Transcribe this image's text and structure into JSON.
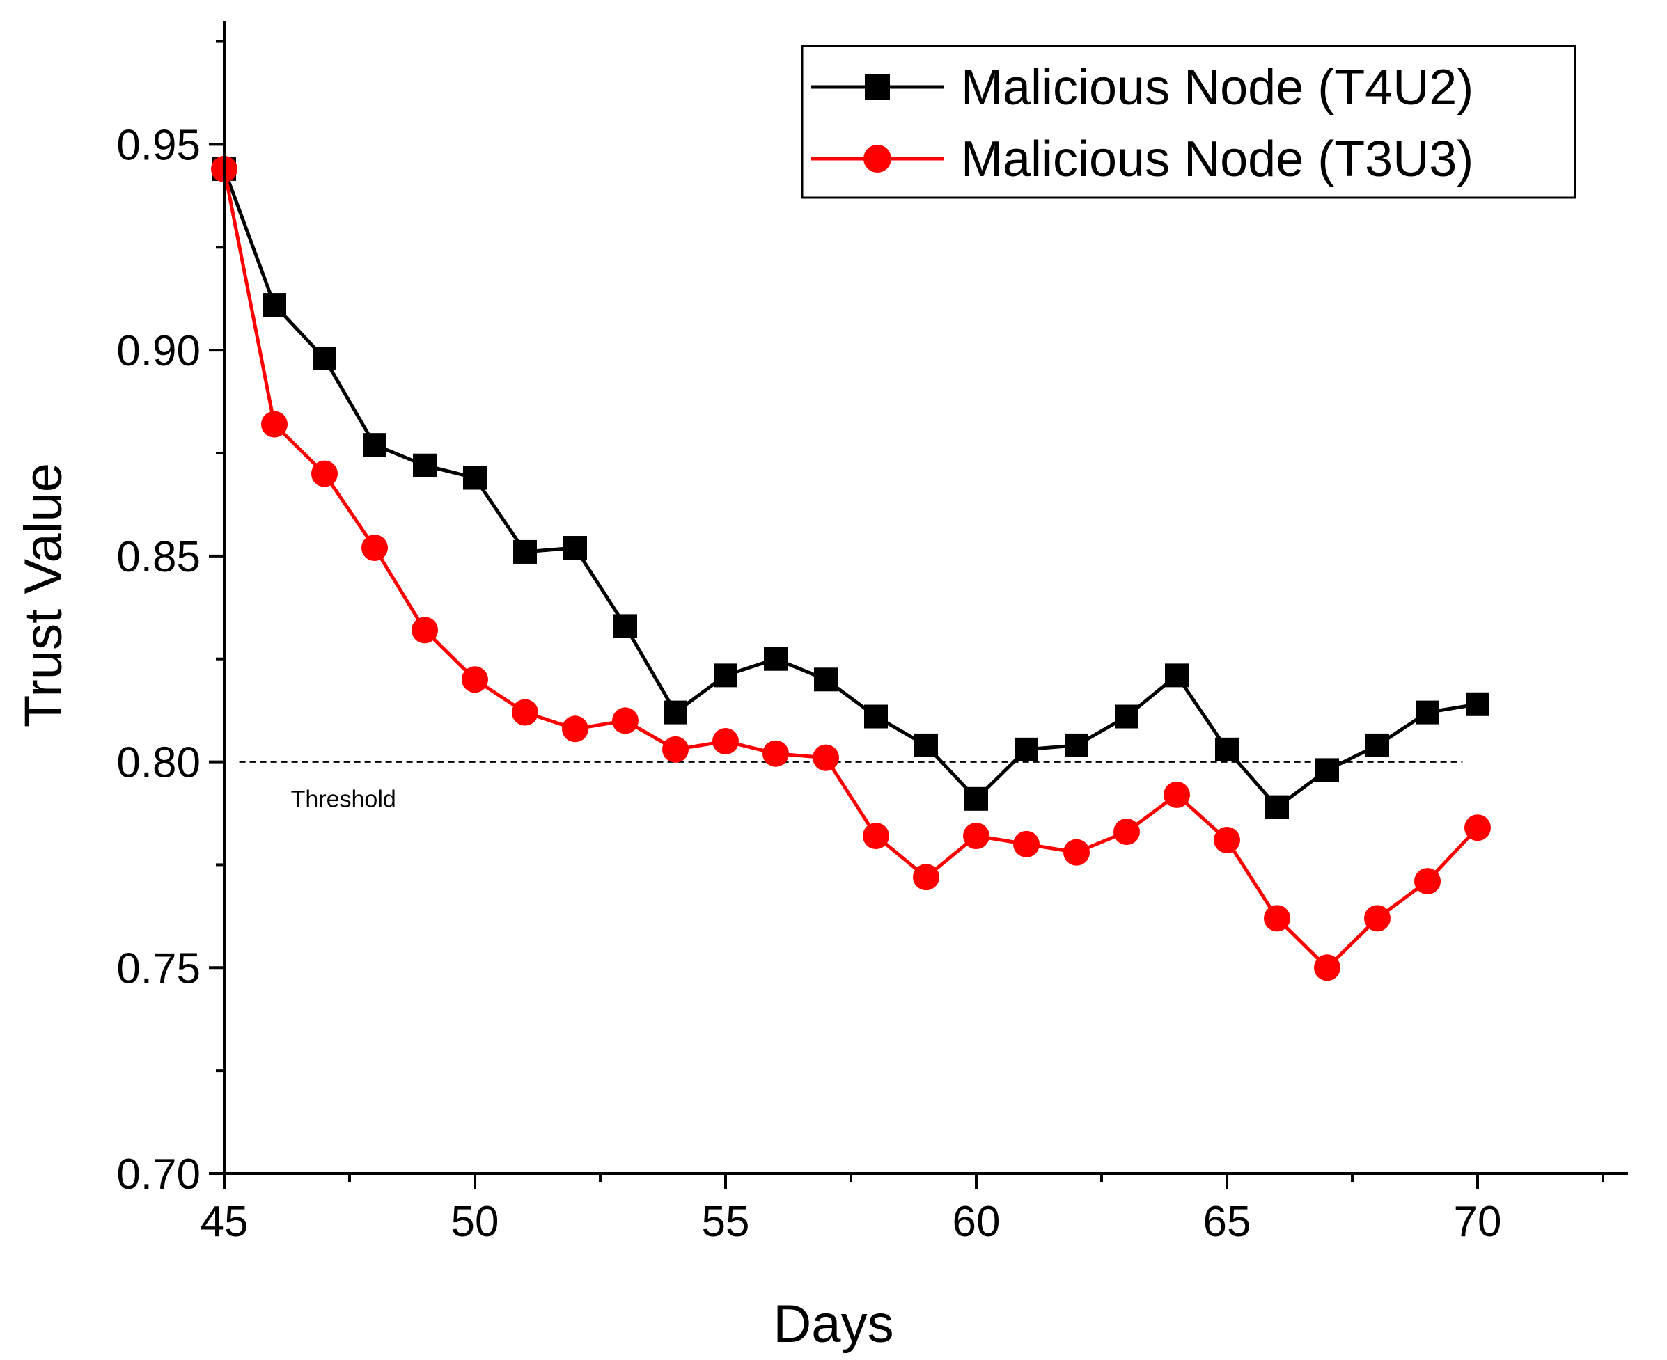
{
  "chart_data": {
    "type": "line",
    "xlabel": "Days",
    "ylabel": "Trust Value",
    "xlim": [
      45,
      73
    ],
    "ylim": [
      0.7,
      0.98
    ],
    "x_ticks": [
      45,
      50,
      55,
      60,
      65,
      70
    ],
    "x_tick_labels": [
      "45",
      "50",
      "55",
      "60",
      "65",
      "70"
    ],
    "x_minor_ticks": [
      47.5,
      52.5,
      57.5,
      62.5,
      67.5,
      72.5
    ],
    "y_ticks": [
      0.7,
      0.75,
      0.8,
      0.85,
      0.9,
      0.95
    ],
    "y_tick_labels": [
      "0.70",
      "0.75",
      "0.80",
      "0.85",
      "0.90",
      "0.95"
    ],
    "y_minor_ticks": [
      0.725,
      0.775,
      0.825,
      0.875,
      0.925,
      0.975
    ],
    "grid": false,
    "legend_position": "top-right",
    "x": [
      45,
      46,
      47,
      48,
      49,
      50,
      51,
      52,
      53,
      54,
      55,
      56,
      57,
      58,
      59,
      60,
      61,
      62,
      63,
      64,
      65,
      66,
      67,
      68,
      69,
      70
    ],
    "series": [
      {
        "name": "Malicious Node (T4U2)",
        "color": "#000000",
        "marker": "square",
        "values": [
          0.944,
          0.911,
          0.898,
          0.877,
          0.872,
          0.869,
          0.851,
          0.852,
          0.833,
          0.812,
          0.821,
          0.825,
          0.82,
          0.811,
          0.804,
          0.791,
          0.803,
          0.804,
          0.811,
          0.821,
          0.803,
          0.789,
          0.798,
          0.804,
          0.812,
          0.814
        ]
      },
      {
        "name": "Malicious Node (T3U3)",
        "color": "#ff0000",
        "marker": "circle",
        "values": [
          0.944,
          0.882,
          0.87,
          0.852,
          0.832,
          0.82,
          0.812,
          0.808,
          0.81,
          0.803,
          0.805,
          0.802,
          0.801,
          0.782,
          0.772,
          0.782,
          0.78,
          0.778,
          0.783,
          0.792,
          0.781,
          0.762,
          0.75,
          0.762,
          0.771,
          0.784
        ]
      }
    ],
    "threshold": {
      "value": 0.8,
      "x_range": [
        45.3,
        69.7
      ],
      "label": "Threshold",
      "style": "dashed"
    }
  }
}
